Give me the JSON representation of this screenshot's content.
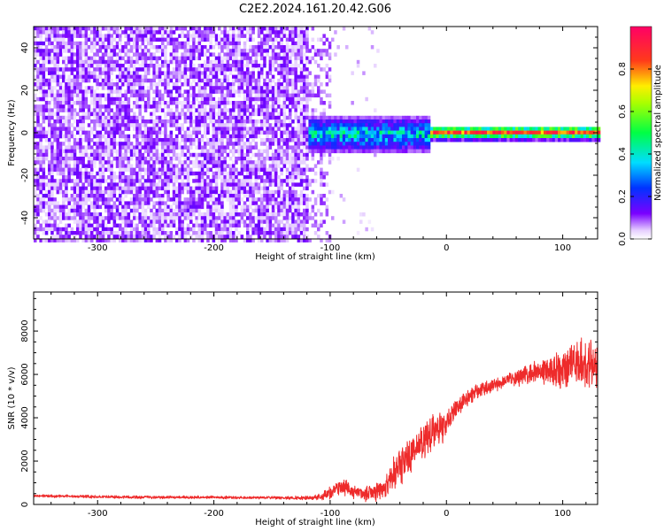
{
  "title": "C2E2.2024.161.20.42.G06",
  "colors": {
    "snr_line": "#ee2b2b",
    "spectrogram_palette": [
      "#ffffff",
      "#6e00ff",
      "#0044ff",
      "#00d8ff",
      "#00ff3c",
      "#ffe600",
      "#ff2a1f",
      "#ff0070"
    ]
  },
  "chart_data": [
    {
      "type": "heatmap",
      "name": "spectrogram",
      "xlabel": "Height of straight line (km)",
      "ylabel": "Frequency (Hz)",
      "xlim": [
        -355,
        130
      ],
      "ylim": [
        -50,
        50
      ],
      "xticks": [
        -300,
        -200,
        -100,
        0,
        100
      ],
      "yticks": [
        -40,
        -20,
        0,
        20,
        40
      ],
      "xtick_labels": [
        "-300",
        "-200",
        "-100",
        "0",
        "100"
      ],
      "ytick_labels": [
        "-40",
        "-20",
        "0",
        "20",
        "40"
      ],
      "colorbar": {
        "label": "Normalized spectral amplitude",
        "range": [
          0,
          1
        ],
        "ticks": [
          0.0,
          0.2,
          0.4,
          0.6,
          0.8
        ],
        "tick_labels": [
          "0.0",
          "0.2",
          "0.4",
          "0.6",
          "0.8"
        ]
      },
      "regions": [
        {
          "description": "broadband noise",
          "x": [
            -355,
            -120
          ],
          "freq": [
            -50,
            50
          ],
          "amplitude": [
            0.05,
            0.15
          ]
        },
        {
          "description": "transition noise",
          "x": [
            -120,
            -100
          ],
          "freq": [
            -50,
            50
          ],
          "amplitude": [
            0.02,
            0.1
          ]
        },
        {
          "description": "scattered weak signal",
          "x": [
            -100,
            -60
          ],
          "freq": [
            -50,
            50
          ],
          "amplitude": [
            0.0,
            0.08
          ]
        },
        {
          "description": "widened carrier",
          "x": [
            -120,
            -15
          ],
          "freq": [
            -8,
            8
          ],
          "amplitude": [
            0.1,
            0.45
          ]
        },
        {
          "description": "carrier",
          "x": [
            -15,
            130
          ],
          "freq": [
            -2,
            3
          ],
          "amplitude": [
            0.7,
            1.0
          ]
        }
      ]
    },
    {
      "type": "line",
      "name": "snr",
      "xlabel": "Height of straight line (km)",
      "ylabel": "SNR (10 * v/v)",
      "xlim": [
        -355,
        130
      ],
      "ylim": [
        0,
        9800
      ],
      "xticks": [
        -300,
        -200,
        -100,
        0,
        100
      ],
      "yticks": [
        0,
        2000,
        4000,
        6000,
        8000
      ],
      "xtick_labels": [
        "-300",
        "-200",
        "-100",
        "0",
        "100"
      ],
      "ytick_labels": [
        "0",
        "2000",
        "4000",
        "6000",
        "8000"
      ],
      "series": [
        {
          "name": "SNR",
          "x": [
            -355,
            -300,
            -250,
            -200,
            -150,
            -120,
            -110,
            -100,
            -90,
            -80,
            -70,
            -60,
            -50,
            -40,
            -30,
            -20,
            -10,
            0,
            10,
            20,
            30,
            40,
            50,
            60,
            70,
            80,
            90,
            100,
            110,
            120,
            130
          ],
          "y": [
            400,
            350,
            330,
            330,
            310,
            300,
            330,
            500,
            800,
            600,
            450,
            600,
            1000,
            1800,
            2500,
            3000,
            3400,
            3800,
            4500,
            5000,
            5300,
            5500,
            5700,
            5850,
            6000,
            6100,
            6200,
            6300,
            6500,
            6400,
            6400
          ],
          "noise": [
            60,
            60,
            60,
            60,
            60,
            80,
            150,
            250,
            350,
            300,
            300,
            400,
            600,
            800,
            900,
            900,
            800,
            600,
            400,
            350,
            300,
            300,
            300,
            350,
            400,
            500,
            700,
            900,
            1000,
            1100,
            1100
          ]
        }
      ]
    }
  ]
}
